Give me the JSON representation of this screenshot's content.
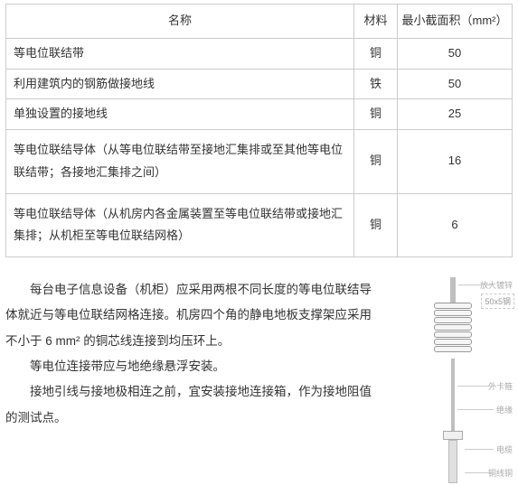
{
  "table": {
    "headers": {
      "name": "名称",
      "material": "材料",
      "min_area": "最小截面积（mm²）"
    },
    "rows": [
      {
        "name": "等电位联结带",
        "material": "铜",
        "area": "50"
      },
      {
        "name": "利用建筑内的钢筋做接地线",
        "material": "铁",
        "area": "50"
      },
      {
        "name": "单独设置的接地线",
        "material": "铜",
        "area": "25"
      },
      {
        "name": "等电位联结导体（从等电位联结带至接地汇集排或至其他等电位联结带；各接地汇集排之间）",
        "material": "铜",
        "area": "16"
      },
      {
        "name": "等电位联结导体（从机房内各金属装置至等电位联结带或接地汇集排；从机柜至等电位联结网格）",
        "material": "铜",
        "area": "6"
      }
    ]
  },
  "paragraphs": {
    "p1": "每台电子信息设备（机柜）应采用两根不同长度的等电位联结导体就近与等电位联结网格连接。机房四个角的静电地板支撑架应采用不小于 6 mm² 的铜芯线连接到均压环上。",
    "p2": "等电位连接带应与地绝缘悬浮安装。",
    "p3": "接地引线与接地极相连之前，宜安装接地连接箱，作为接地阻值的测试点。"
  },
  "diagram": {
    "dim_text": "50x5钢",
    "labels": {
      "l1": "放大镀锌",
      "l2": "外卡箍",
      "l3": "绝缘",
      "l4": "电缆",
      "l5": "铜线铜"
    }
  },
  "colors": {
    "border": "#cccccc",
    "text": "#333333",
    "diagram_line": "#bfbfbf",
    "label_text": "#aaaaaa"
  }
}
